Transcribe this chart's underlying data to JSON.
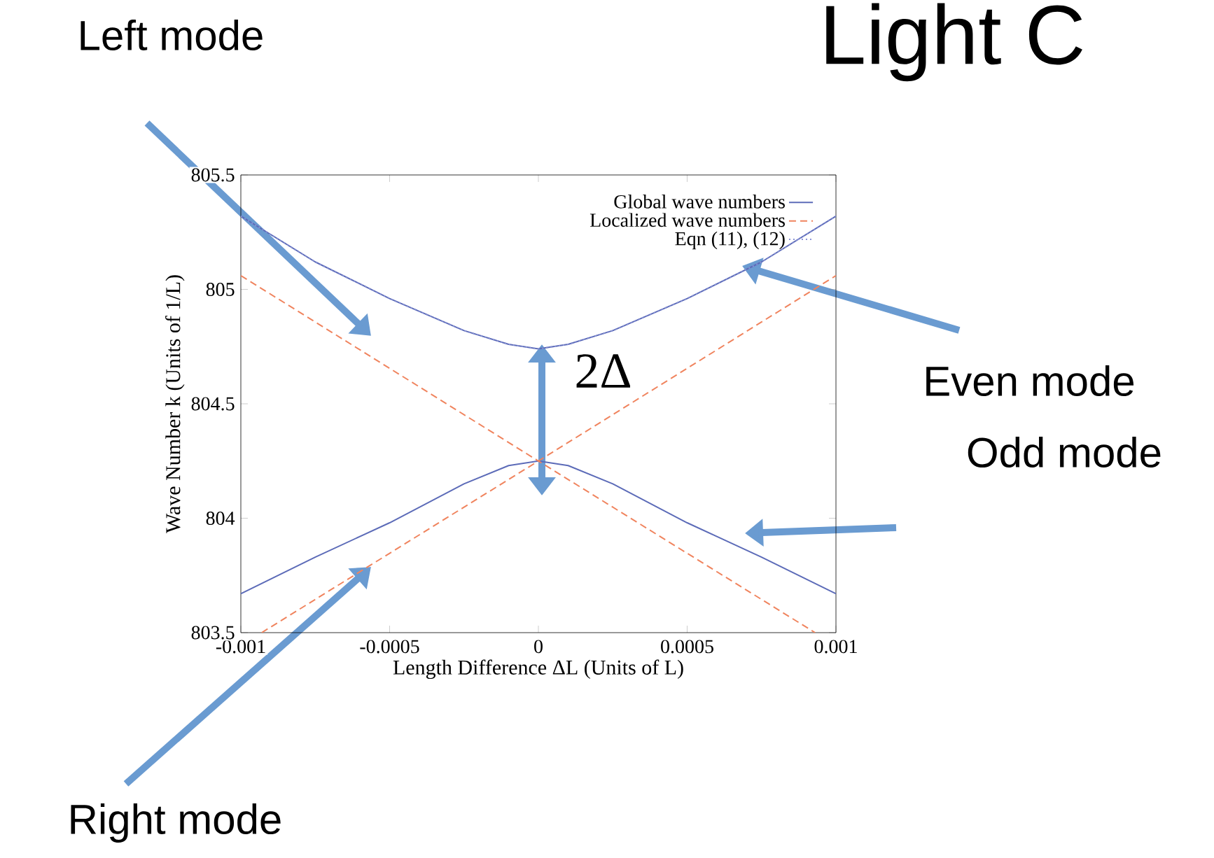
{
  "chart_data": {
    "type": "line",
    "title": "Light C",
    "xlabel": "Length Difference  ΔL   (Units of L)",
    "ylabel": "Wave Number  k   (Units of 1/L)",
    "xlim": [
      -0.001,
      0.001
    ],
    "ylim": [
      803.5,
      805.5
    ],
    "xticks": [
      -0.001,
      -0.0005,
      0,
      0.0005,
      0.001
    ],
    "yticks": [
      803.5,
      804,
      804.5,
      805,
      805.5
    ],
    "grid": false,
    "legend": "top right",
    "series": [
      {
        "name": "Global wave numbers",
        "color": "#5c6bb8",
        "line_style": "solid",
        "x": [
          -0.001,
          -0.00075,
          -0.0005,
          -0.00025,
          -0.0001,
          0,
          0.0001,
          0.00025,
          0.0005,
          0.00075,
          0.001
        ],
        "values": [
          805.32,
          805.12,
          804.96,
          804.82,
          804.76,
          804.74,
          804.76,
          804.82,
          804.96,
          805.12,
          805.32
        ]
      },
      {
        "color": "#5c6bb8",
        "line_style": "solid",
        "x": [
          -0.001,
          -0.00075,
          -0.0005,
          -0.00025,
          -0.0001,
          0,
          0.0001,
          0.00025,
          0.0005,
          0.00075,
          0.001
        ],
        "values": [
          803.67,
          803.83,
          803.98,
          804.15,
          804.23,
          804.25,
          804.23,
          804.15,
          803.98,
          803.83,
          803.67
        ]
      },
      {
        "name": "Localized wave numbers",
        "color": "#f0845e",
        "line_style": "dashed",
        "x": [
          -0.001,
          0,
          0.00093
        ],
        "values": [
          805.06,
          804.25,
          803.5
        ]
      },
      {
        "color": "#f0845e",
        "line_style": "dashed",
        "x": [
          -0.00093,
          0,
          0.001
        ],
        "values": [
          803.5,
          804.25,
          805.06
        ]
      },
      {
        "name": "Eqn (11), (12)",
        "color": "#8a93d6",
        "line_style": "dotted",
        "x": [
          -0.001,
          -0.00075,
          -0.0005,
          -0.00025,
          -0.0001,
          0,
          0.0001,
          0.00025,
          0.0005,
          0.00075,
          0.001
        ],
        "values": [
          805.32,
          805.12,
          804.96,
          804.82,
          804.76,
          804.74,
          804.76,
          804.82,
          804.96,
          805.12,
          805.32
        ]
      }
    ],
    "annotations": [
      "Left mode",
      "Even mode",
      "Odd mode",
      "Right mode",
      "2Δ"
    ]
  }
}
